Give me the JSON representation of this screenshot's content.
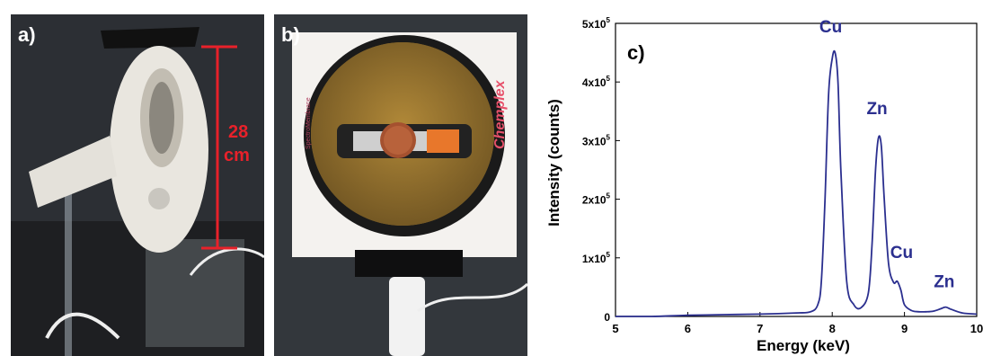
{
  "panel_a": {
    "letter": "a)",
    "measurement_value": "28",
    "measurement_unit": "cm"
  },
  "panel_b": {
    "letter": "b)",
    "brand_text": "Chemplex",
    "membrane_text": "SpectroMembrane"
  },
  "chart_data": {
    "type": "line",
    "panel_label": "c)",
    "xlabel": "Energy (keV)",
    "ylabel": "Intensity (counts)",
    "xlim": [
      5,
      10
    ],
    "ylim": [
      0,
      500000
    ],
    "x_ticks": [
      "5",
      "6",
      "7",
      "8",
      "9",
      "10"
    ],
    "y_ticks": [
      {
        "base": "0",
        "exp": ""
      },
      {
        "base": "1x10",
        "exp": "5"
      },
      {
        "base": "2x10",
        "exp": "5"
      },
      {
        "base": "3x10",
        "exp": "5"
      },
      {
        "base": "4x10",
        "exp": "5"
      },
      {
        "base": "5x10",
        "exp": "5"
      }
    ],
    "line_color": "#2b2f8f",
    "series": [
      {
        "x": [
          5.0,
          5.5,
          6.0,
          6.5,
          7.0,
          7.5,
          7.7,
          7.8,
          7.85,
          7.9,
          7.95,
          8.0,
          8.04,
          8.08,
          8.12,
          8.2,
          8.3,
          8.4,
          8.5,
          8.55,
          8.6,
          8.64,
          8.68,
          8.72,
          8.78,
          8.85,
          8.9,
          8.95,
          9.0,
          9.1,
          9.2,
          9.3,
          9.4,
          9.5,
          9.57,
          9.65,
          9.8,
          10.0
        ],
        "y": [
          0,
          0,
          2000,
          3000,
          4000,
          6000,
          8000,
          20000,
          60000,
          200000,
          380000,
          440000,
          450000,
          400000,
          250000,
          60000,
          20000,
          15000,
          40000,
          120000,
          250000,
          305000,
          290000,
          200000,
          90000,
          58000,
          60000,
          45000,
          20000,
          10000,
          8000,
          8000,
          9000,
          13000,
          16000,
          12000,
          6000,
          4000
        ]
      }
    ],
    "annotations": [
      {
        "text": "Cu",
        "x": 7.98,
        "y": 485000
      },
      {
        "text": "Zn",
        "x": 8.62,
        "y": 345000
      },
      {
        "text": "Cu",
        "x": 8.96,
        "y": 100000
      },
      {
        "text": "Zn",
        "x": 9.55,
        "y": 50000
      }
    ]
  }
}
